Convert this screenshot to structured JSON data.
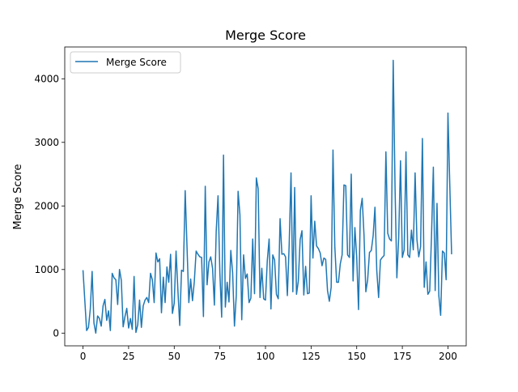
{
  "chart_data": {
    "type": "line",
    "title": "Merge Score",
    "xlabel": "",
    "ylabel": "Merge Score",
    "xlim": [
      -10,
      210
    ],
    "ylim": [
      -200,
      4500
    ],
    "xticks": [
      0,
      25,
      50,
      75,
      100,
      125,
      150,
      175,
      200
    ],
    "yticks": [
      0,
      1000,
      2000,
      3000,
      4000
    ],
    "xtick_labels": [
      "0",
      "25",
      "50",
      "75",
      "100",
      "125",
      "150",
      "175",
      "200"
    ],
    "ytick_labels": [
      "0",
      "1000",
      "2000",
      "3000",
      "4000"
    ],
    "grid": false,
    "legend": {
      "position": "top-left",
      "entries": [
        "Merge Score"
      ]
    },
    "series": [
      {
        "name": "Merge Score",
        "color": "#1f77b4",
        "x_start": 0,
        "x_step": 1,
        "values": [
          990,
          510,
          40,
          90,
          380,
          970,
          160,
          0,
          270,
          230,
          110,
          430,
          530,
          200,
          350,
          40,
          940,
          870,
          840,
          450,
          1000,
          830,
          100,
          260,
          390,
          80,
          230,
          60,
          890,
          10,
          130,
          520,
          90,
          430,
          520,
          560,
          480,
          940,
          840,
          480,
          1260,
          1120,
          1170,
          320,
          880,
          480,
          1040,
          800,
          1240,
          310,
          470,
          1290,
          680,
          120,
          990,
          970,
          2240,
          1360,
          480,
          850,
          510,
          810,
          1290,
          1240,
          1200,
          1190,
          260,
          2310,
          760,
          1120,
          1200,
          1020,
          440,
          1600,
          2160,
          950,
          250,
          2800,
          410,
          800,
          490,
          1300,
          950,
          110,
          590,
          2230,
          1860,
          210,
          1230,
          860,
          930,
          480,
          550,
          1480,
          620,
          2440,
          2270,
          560,
          1020,
          540,
          520,
          1140,
          1480,
          380,
          1230,
          1150,
          610,
          540,
          1800,
          1240,
          1250,
          1200,
          590,
          1400,
          2520,
          650,
          2290,
          610,
          820,
          1470,
          1610,
          600,
          1050,
          620,
          630,
          2160,
          1180,
          1760,
          1370,
          1330,
          1260,
          1060,
          1180,
          1160,
          670,
          500,
          720,
          2880,
          1360,
          800,
          800,
          1090,
          1230,
          2330,
          2320,
          1230,
          1190,
          2500,
          820,
          1660,
          1190,
          370,
          1930,
          2120,
          1540,
          650,
          840,
          1270,
          1300,
          1530,
          1980,
          980,
          560,
          1150,
          1190,
          1220,
          2850,
          1570,
          1480,
          1450,
          4290,
          2300,
          870,
          1500,
          2710,
          1190,
          1310,
          2850,
          1230,
          1190,
          1620,
          1310,
          2520,
          1470,
          1200,
          1360,
          3060,
          720,
          1120,
          610,
          660,
          1540,
          2610,
          670,
          2040,
          590,
          280,
          1290,
          1260,
          840,
          3460,
          2340,
          1240
        ]
      }
    ]
  }
}
